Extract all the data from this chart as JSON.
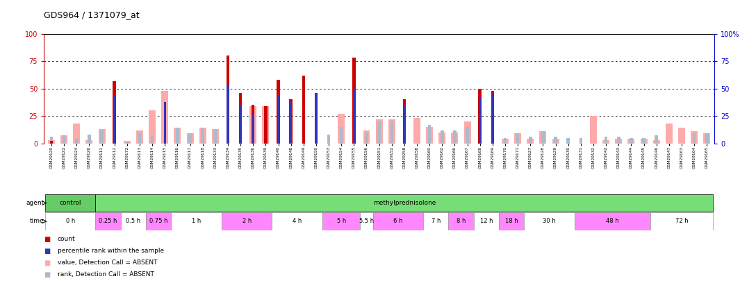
{
  "title": "GDS964 / 1371079_at",
  "samples": [
    "GSM29120",
    "GSM29122",
    "GSM29124",
    "GSM29126",
    "GSM29111",
    "GSM29112",
    "GSM29172",
    "GSM29113",
    "GSM29114",
    "GSM29115",
    "GSM29116",
    "GSM29117",
    "GSM29118",
    "GSM29133",
    "GSM29134",
    "GSM29135",
    "GSM29136",
    "GSM29139",
    "GSM29140",
    "GSM29148",
    "GSM29149",
    "GSM29150",
    "GSM29153",
    "GSM29154",
    "GSM29155",
    "GSM29156",
    "GSM29151",
    "GSM29152",
    "GSM29258",
    "GSM29158",
    "GSM29160",
    "GSM29162",
    "GSM29166",
    "GSM29167",
    "GSM29168",
    "GSM29169",
    "GSM29170",
    "GSM29171",
    "GSM29127",
    "GSM29128",
    "GSM29129",
    "GSM29130",
    "GSM29131",
    "GSM29132",
    "GSM29142",
    "GSM29143",
    "GSM29144",
    "GSM29145",
    "GSM29146",
    "GSM29147",
    "GSM29163",
    "GSM29164",
    "GSM29165"
  ],
  "red_values": [
    2,
    0,
    0,
    0,
    0,
    57,
    0,
    0,
    0,
    0,
    0,
    0,
    0,
    0,
    80,
    46,
    35,
    34,
    58,
    40,
    62,
    46,
    0,
    0,
    78,
    0,
    0,
    0,
    40,
    0,
    0,
    0,
    0,
    0,
    50,
    48,
    0,
    0,
    0,
    0,
    0,
    0,
    0,
    0,
    0,
    0,
    0,
    0,
    0,
    0,
    0,
    0,
    0
  ],
  "blue_values": [
    0,
    0,
    0,
    0,
    0,
    44,
    0,
    0,
    0,
    38,
    0,
    0,
    0,
    0,
    52,
    34,
    26,
    0,
    44,
    38,
    0,
    46,
    0,
    0,
    50,
    0,
    0,
    0,
    35,
    0,
    0,
    0,
    0,
    0,
    42,
    45,
    0,
    0,
    0,
    0,
    0,
    0,
    0,
    0,
    0,
    0,
    0,
    0,
    0,
    0,
    0,
    0,
    0
  ],
  "pink_values": [
    3,
    7,
    18,
    3,
    13,
    0,
    2,
    12,
    30,
    48,
    14,
    9,
    14,
    13,
    0,
    0,
    34,
    34,
    0,
    0,
    0,
    0,
    0,
    27,
    0,
    12,
    22,
    22,
    0,
    23,
    15,
    10,
    10,
    20,
    0,
    0,
    4,
    9,
    4,
    11,
    4,
    0,
    0,
    25,
    3,
    4,
    4,
    4,
    3,
    18,
    14,
    11,
    9
  ],
  "lightblue_values": [
    6,
    7,
    4,
    8,
    12,
    0,
    1,
    10,
    7,
    0,
    14,
    9,
    14,
    13,
    0,
    2,
    0,
    0,
    0,
    0,
    0,
    0,
    8,
    15,
    0,
    10,
    20,
    20,
    0,
    0,
    17,
    12,
    12,
    15,
    0,
    0,
    5,
    9,
    6,
    11,
    6,
    5,
    5,
    0,
    6,
    6,
    5,
    5,
    7,
    0,
    0,
    9,
    9
  ],
  "agent_groups": [
    {
      "label": "control",
      "start": 0,
      "end": 4,
      "color": "#66cc66"
    },
    {
      "label": "methylprednisolone",
      "start": 4,
      "end": 53,
      "color": "#77dd77"
    }
  ],
  "time_groups": [
    {
      "label": "0 h",
      "start": 0,
      "end": 4,
      "color": "#ffffff"
    },
    {
      "label": "0.25 h",
      "start": 4,
      "end": 6,
      "color": "#ff88ff"
    },
    {
      "label": "0.5 h",
      "start": 6,
      "end": 8,
      "color": "#ffffff"
    },
    {
      "label": "0.75 h",
      "start": 8,
      "end": 10,
      "color": "#ff88ff"
    },
    {
      "label": "1 h",
      "start": 10,
      "end": 14,
      "color": "#ffffff"
    },
    {
      "label": "2 h",
      "start": 14,
      "end": 18,
      "color": "#ff88ff"
    },
    {
      "label": "4 h",
      "start": 18,
      "end": 22,
      "color": "#ffffff"
    },
    {
      "label": "5 h",
      "start": 22,
      "end": 25,
      "color": "#ff88ff"
    },
    {
      "label": "5.5 h",
      "start": 25,
      "end": 26,
      "color": "#ffffff"
    },
    {
      "label": "6 h",
      "start": 26,
      "end": 30,
      "color": "#ff88ff"
    },
    {
      "label": "7 h",
      "start": 30,
      "end": 32,
      "color": "#ffffff"
    },
    {
      "label": "8 h",
      "start": 32,
      "end": 34,
      "color": "#ff88ff"
    },
    {
      "label": "12 h",
      "start": 34,
      "end": 36,
      "color": "#ffffff"
    },
    {
      "label": "18 h",
      "start": 36,
      "end": 38,
      "color": "#ff88ff"
    },
    {
      "label": "30 h",
      "start": 38,
      "end": 42,
      "color": "#ffffff"
    },
    {
      "label": "48 h",
      "start": 42,
      "end": 48,
      "color": "#ff88ff"
    },
    {
      "label": "72 h",
      "start": 48,
      "end": 53,
      "color": "#ffffff"
    }
  ],
  "ylim": [
    0,
    100
  ],
  "yticks": [
    0,
    25,
    50,
    75,
    100
  ],
  "background_color": "#ffffff",
  "plot_bg_color": "#ffffff",
  "red_color": "#cc0000",
  "blue_color": "#3333bb",
  "pink_color": "#ffaaaa",
  "lightblue_color": "#aabbcc",
  "left_axis_color": "#cc0000",
  "right_axis_color": "#0000cc"
}
